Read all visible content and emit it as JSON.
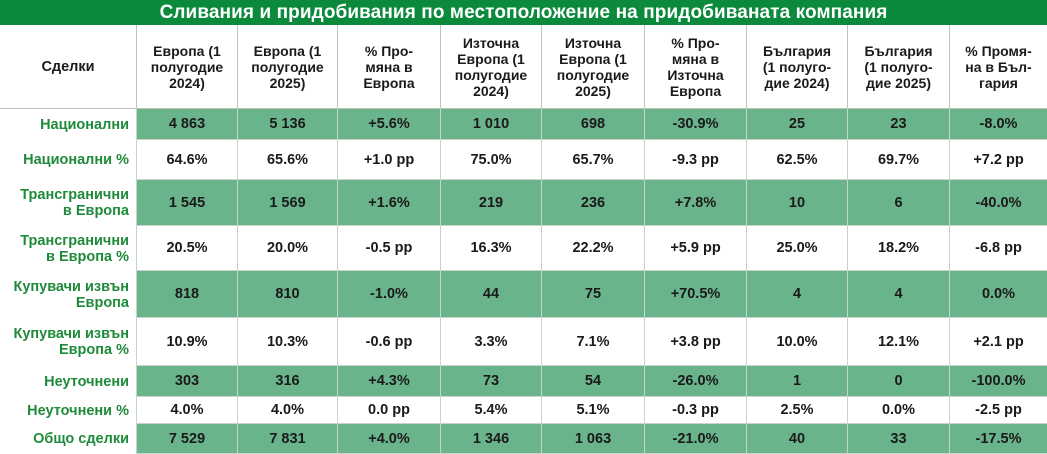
{
  "title": "Сливания и придобивания по местоположение на придобиваната компания",
  "colors": {
    "title_bg": "#0b8a3c",
    "row_shade": "#6ab48c",
    "label_green": "#1f8a3a"
  },
  "table": {
    "headers": [
      "Сделки",
      "Европа (1\nполугодие\n2024)",
      "Европа (1\nполугодие\n2025)",
      "% Про-\nмяна в\nЕвропа",
      "Източна\nЕвропа (1\nполугодие\n2024)",
      "Източна\nЕвропа (1\nполугодие\n2025)",
      "% Про-\nмяна в\nИзточна\nЕвропа",
      "България\n(1 полуго-\nдие 2024)",
      "България\n(1 полуго-\nдие 2025)",
      "% Промя-\nна в Бъл-\nгария"
    ],
    "rows": [
      {
        "label": "Национални",
        "shaded": true,
        "values": [
          "4 863",
          "5 136",
          "+5.6%",
          "1 010",
          "698",
          "-30.9%",
          "25",
          "23",
          "-8.0%"
        ]
      },
      {
        "label": "Национални %",
        "shaded": false,
        "values": [
          "64.6%",
          "65.6%",
          "+1.0 pp",
          "75.0%",
          "65.7%",
          "-9.3 pp",
          "62.5%",
          "69.7%",
          "+7.2 pp"
        ]
      },
      {
        "label": "Трансгранични\nв Европа",
        "shaded": true,
        "values": [
          "1 545",
          "1 569",
          "+1.6%",
          "219",
          "236",
          "+7.8%",
          "10",
          "6",
          "-40.0%"
        ]
      },
      {
        "label": "Трансгранични\nв Европа %",
        "shaded": false,
        "values": [
          "20.5%",
          "20.0%",
          "-0.5 pp",
          "16.3%",
          "22.2%",
          "+5.9 pp",
          "25.0%",
          "18.2%",
          "-6.8 pp"
        ]
      },
      {
        "label": "Купувачи извън\nЕвропа",
        "shaded": true,
        "values": [
          "818",
          "810",
          "-1.0%",
          "44",
          "75",
          "+70.5%",
          "4",
          "4",
          "0.0%"
        ]
      },
      {
        "label": "Купувачи извън\nЕвропа %",
        "shaded": false,
        "values": [
          "10.9%",
          "10.3%",
          "-0.6 pp",
          "3.3%",
          "7.1%",
          "+3.8 pp",
          "10.0%",
          "12.1%",
          "+2.1 pp"
        ]
      },
      {
        "label": "Неуточнени",
        "shaded": true,
        "values": [
          "303",
          "316",
          "+4.3%",
          "73",
          "54",
          "-26.0%",
          "1",
          "0",
          "-100.0%"
        ]
      },
      {
        "label": "Неуточнени %",
        "shaded": false,
        "values": [
          "4.0%",
          "4.0%",
          "0.0 pp",
          "5.4%",
          "5.1%",
          "-0.3 pp",
          "2.5%",
          "0.0%",
          "-2.5 pp"
        ]
      },
      {
        "label": "Общо сделки",
        "shaded": true,
        "values": [
          "7 529",
          "7 831",
          "+4.0%",
          "1 346",
          "1 063",
          "-21.0%",
          "40",
          "33",
          "-17.5%"
        ]
      }
    ]
  }
}
